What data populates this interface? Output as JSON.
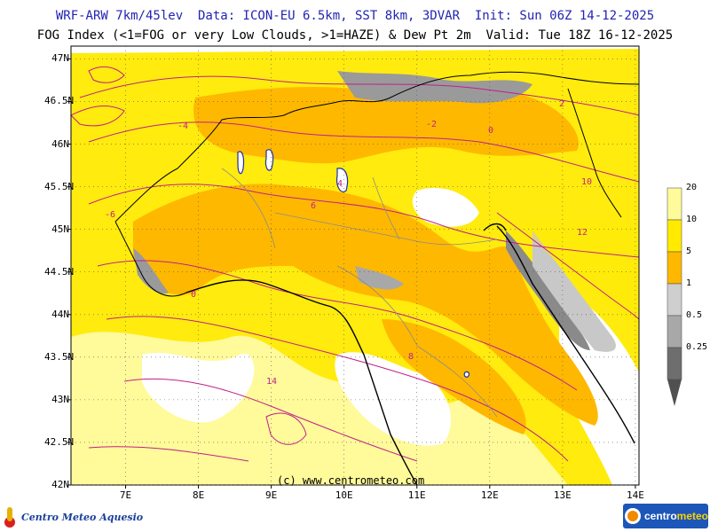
{
  "header": {
    "line1": "WRF-ARW 7km/45lev  Data: ICON-EU 6.5km, SST 8km, 3DVAR  Init: Sun 06Z 14-12-2025",
    "line2": "FOG Index (<1=FOG or very Low Clouds, >1=HAZE) & Dew Pt 2m  Valid: Tue 18Z 16-12-2025"
  },
  "map": {
    "lat_labels": [
      "47N",
      "46.5N",
      "46N",
      "45.5N",
      "45N",
      "44.5N",
      "44N",
      "43.5N",
      "43N",
      "42.5N",
      "42N"
    ],
    "lon_labels": [
      "7E",
      "8E",
      "9E",
      "10E",
      "11E",
      "12E",
      "13E",
      "14E"
    ],
    "lat_values": [
      47,
      46.5,
      46,
      45.5,
      45,
      44.5,
      44,
      43.5,
      43,
      42.5,
      42
    ],
    "lon_values": [
      7,
      8,
      9,
      10,
      11,
      12,
      13,
      14
    ],
    "credit": "(c) www.centrometeo.com",
    "dewpoint_labels": [
      "-4",
      "-2",
      "0",
      "2",
      "4",
      "6",
      "8",
      "10",
      "12",
      "14",
      "-6",
      "-8"
    ]
  },
  "colorbar": {
    "labels": [
      "20",
      "10",
      "5",
      "1",
      "0.5",
      "0.25"
    ],
    "colors": [
      "#fffa9a",
      "#ffea00",
      "#ffb800",
      "#cfcfcf",
      "#a8a8a8",
      "#6e6e6e"
    ]
  },
  "logos": {
    "left": "Centro Meteo Aquesio",
    "right_part1": "centro",
    "right_part2": "meteo"
  }
}
